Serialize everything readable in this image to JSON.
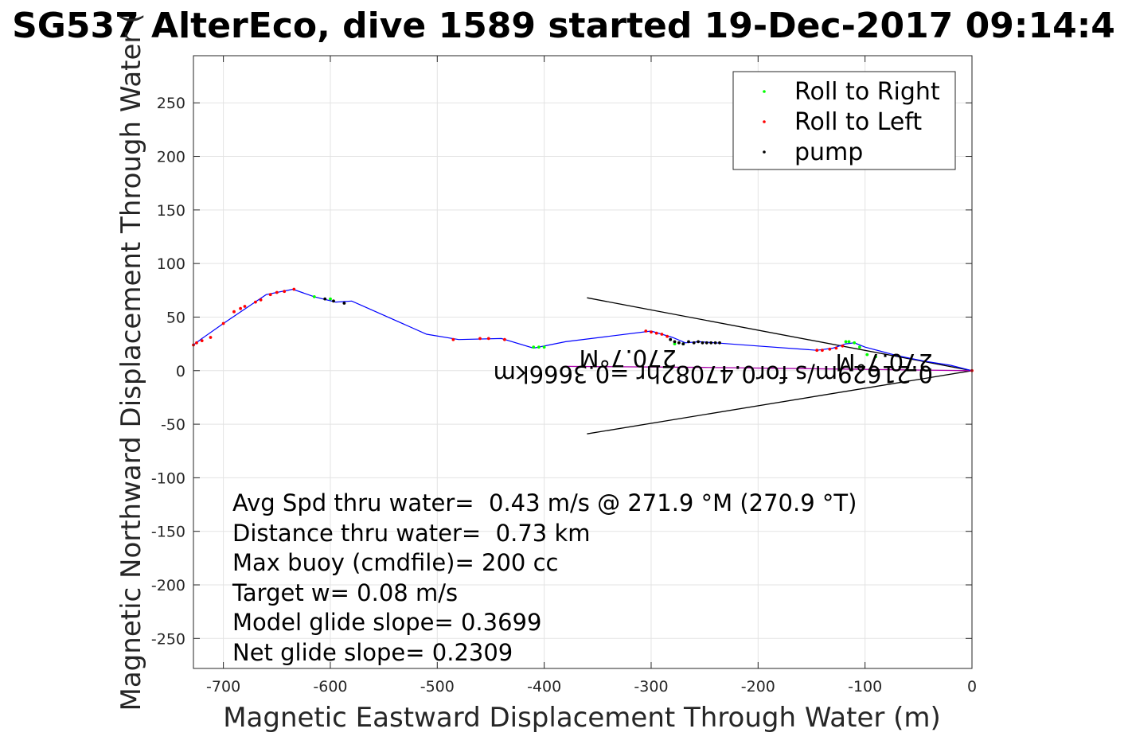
{
  "chart_data": {
    "type": "scatter",
    "title": "SG537 AlterEco, dive 1589 started 19-Dec-2017 09:14:4",
    "xlabel": "Magnetic Eastward Displacement Through Water (m)",
    "ylabel": "Magnetic Northward Displacement Through Water (",
    "xlim": [
      -728,
      0
    ],
    "ylim": [
      -278,
      294
    ],
    "grid": true,
    "legend_position": "top-right",
    "x_ticks": [
      {
        "value": -700,
        "label": "-700"
      },
      {
        "value": -600,
        "label": "-600"
      },
      {
        "value": -500,
        "label": "-500"
      },
      {
        "value": -400,
        "label": "-400"
      },
      {
        "value": -300,
        "label": "-300"
      },
      {
        "value": -200,
        "label": "-200"
      },
      {
        "value": -100,
        "label": "-100"
      },
      {
        "value": 0,
        "label": "0"
      }
    ],
    "y_ticks": [
      {
        "value": 250,
        "label": "250"
      },
      {
        "value": 200,
        "label": "200"
      },
      {
        "value": 150,
        "label": "150"
      },
      {
        "value": 100,
        "label": "100"
      },
      {
        "value": 50,
        "label": "50"
      },
      {
        "value": 0,
        "label": "0"
      },
      {
        "value": -50,
        "label": "-50"
      },
      {
        "value": -100,
        "label": "-100"
      },
      {
        "value": -150,
        "label": "-150"
      },
      {
        "value": -200,
        "label": "-200"
      },
      {
        "value": -250,
        "label": "-250"
      }
    ],
    "track": {
      "color": "#0000ff",
      "x": [
        0,
        -20,
        -45,
        -70,
        -85,
        -100,
        -110,
        -118,
        -130,
        -145,
        -200,
        -240,
        -255,
        -268,
        -280,
        -300,
        -340,
        -380,
        -410,
        -440,
        -480,
        -510,
        -580,
        -595,
        -615,
        -635,
        -660,
        -700,
        -720,
        -728
      ],
      "y": [
        0,
        5,
        9,
        14,
        18,
        22,
        26,
        25,
        21,
        19,
        23,
        26,
        27,
        26,
        31,
        37,
        32,
        27,
        21,
        30,
        29,
        34,
        65,
        64,
        69,
        76,
        71,
        44,
        30,
        24
      ]
    },
    "current_line": {
      "color": "#aa00aa",
      "x": [
        0,
        -250,
        -380
      ],
      "y": [
        0,
        3,
        4
      ]
    },
    "wedge_lines": {
      "color": "#000000",
      "x": [
        0,
        -360,
        0,
        -360
      ],
      "y": [
        0,
        68,
        0,
        -59
      ]
    },
    "series": [
      {
        "name": "Roll to Right",
        "color": "#00ff00",
        "x": [
          -615,
          -600,
          -410,
          -405,
          -400,
          -278,
          -270,
          -118,
          -115,
          -110,
          -105,
          -98,
          -90
        ],
        "y": [
          69,
          67,
          22,
          22,
          22,
          25,
          25,
          27,
          27,
          26,
          22,
          15,
          13
        ]
      },
      {
        "name": "Roll to Left",
        "color": "#ff0000",
        "x": [
          -728,
          -725,
          -720,
          -712,
          -700,
          -690,
          -684,
          -680,
          -670,
          -665,
          -656,
          -650,
          -643,
          -634,
          -485,
          -460,
          -452,
          -437,
          -305,
          -300,
          -295,
          -290,
          -285,
          -145,
          -140,
          -133,
          -127,
          -121,
          0
        ],
        "y": [
          24,
          26,
          28,
          31,
          44,
          55,
          58,
          60,
          64,
          66,
          71,
          73,
          74,
          76,
          29,
          30,
          30,
          29,
          37,
          36,
          35,
          34,
          32,
          19,
          19,
          20,
          21,
          23,
          0
        ]
      },
      {
        "name": "pump",
        "color": "#000000",
        "x": [
          -605,
          -597,
          -587,
          -282,
          -278,
          -274,
          -270,
          -265,
          -260,
          -256,
          -252,
          -248,
          -244,
          -240,
          -236
        ],
        "y": [
          67,
          65,
          63,
          29,
          27,
          26,
          25,
          27,
          26,
          27,
          26,
          26,
          26,
          26,
          26
        ]
      }
    ],
    "annotations": {
      "ann_current": "0.21629m/s for0.47082hr =0.3666km",
      "ann_heading_1": "270.7°M",
      "ann_heading_2": "270.7°M"
    },
    "stats": [
      "Avg Spd thru water=  0.43 m/s @ 271.9 °M (270.9 °T)",
      "Distance thru water=  0.73 km",
      "Max buoy (cmdfile)= 200 cc",
      "Target w= 0.08 m/s",
      "Model glide slope= 0.3699",
      "Net glide slope= 0.2309"
    ]
  }
}
